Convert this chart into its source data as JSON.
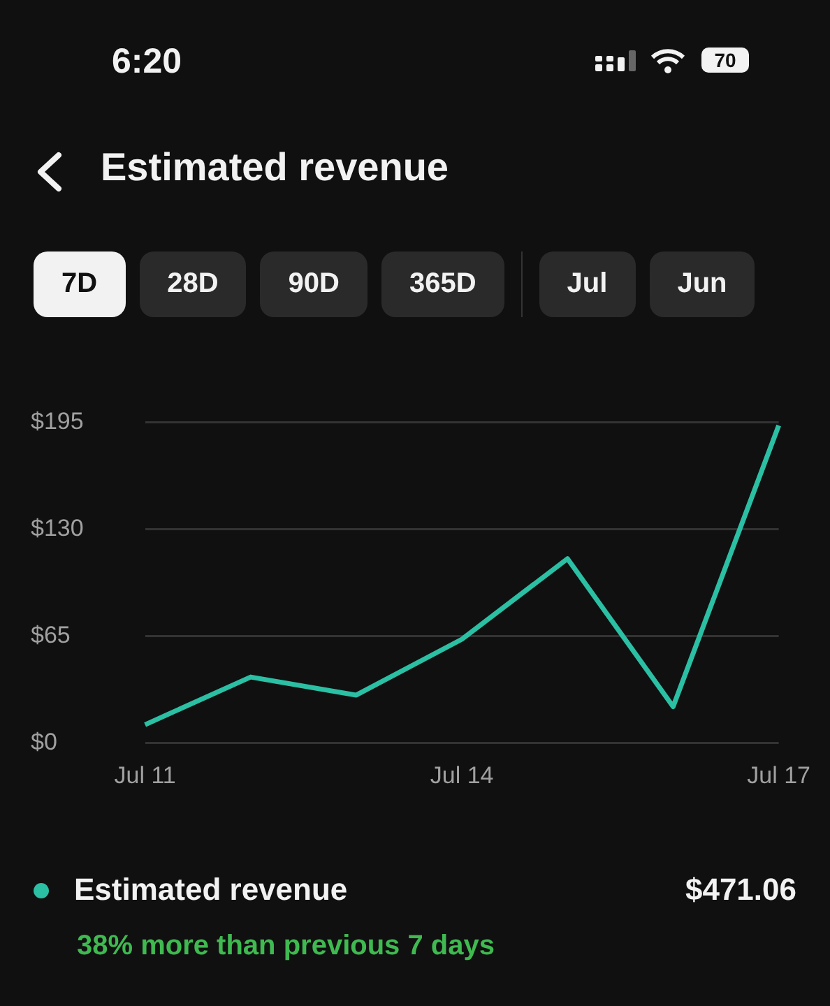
{
  "chart_data": {
    "type": "line",
    "title": "Estimated revenue",
    "categories": [
      "Jul 11",
      null,
      null,
      "Jul 14",
      null,
      null,
      "Jul 17"
    ],
    "series": [
      {
        "name": "Estimated revenue",
        "color": "#2bbfa4",
        "values": [
          11,
          40,
          29,
          63,
          112,
          22,
          193
        ]
      }
    ],
    "ylim": [
      0,
      195
    ],
    "yticks": [
      {
        "value": 0,
        "label": "$0"
      },
      {
        "value": 65,
        "label": "$65"
      },
      {
        "value": 130,
        "label": "$130"
      },
      {
        "value": 195,
        "label": "$195"
      }
    ],
    "grid": "y",
    "legend": "bottom",
    "marker": "none",
    "line_style": "solid",
    "annotations": [
      "6:20",
      "70",
      "7D",
      "28D",
      "90D",
      "365D",
      "Jul",
      "Jun",
      "$471.06",
      "38% more than previous 7 days"
    ]
  }
}
